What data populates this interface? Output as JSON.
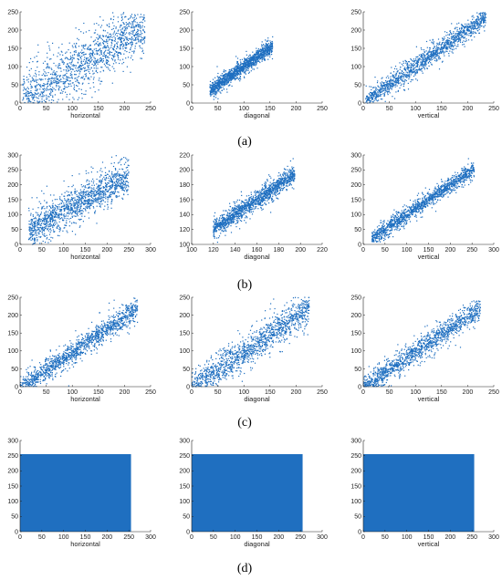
{
  "colors": {
    "marker": "#1f6fc0",
    "fill": "#1f6fc0",
    "axis": "#222222"
  },
  "panels": [
    {
      "label": "(a)"
    },
    {
      "label": "(b)"
    },
    {
      "label": "(c)"
    },
    {
      "label": "(d)"
    }
  ],
  "chart_data": [
    {
      "type": "scatter",
      "panel": "(a)",
      "xlabel": "horizontal",
      "ylabel": "",
      "xlim": [
        0,
        250
      ],
      "ylim": [
        0,
        250
      ],
      "xticks": [
        0,
        50,
        100,
        150,
        200,
        250
      ],
      "yticks": [
        0,
        50,
        100,
        150,
        200,
        250
      ],
      "distribution": {
        "center": [
          110,
          100
        ],
        "trend_slope": 0.85,
        "spread": 38,
        "x_range": [
          5,
          240
        ]
      }
    },
    {
      "type": "scatter",
      "panel": "(a)",
      "xlabel": "diagonal",
      "ylabel": "",
      "xlim": [
        0,
        250
      ],
      "ylim": [
        0,
        250
      ],
      "xticks": [
        0,
        50,
        100,
        150,
        200,
        250
      ],
      "yticks": [
        0,
        50,
        100,
        150,
        200,
        250
      ],
      "distribution": {
        "center": [
          95,
          95
        ],
        "trend_slope": 1.0,
        "spread": 10,
        "x_range": [
          35,
          155
        ]
      }
    },
    {
      "type": "scatter",
      "panel": "(a)",
      "xlabel": "vertical",
      "ylabel": "",
      "xlim": [
        0,
        250
      ],
      "ylim": [
        0,
        250
      ],
      "xticks": [
        0,
        50,
        100,
        150,
        200,
        250
      ],
      "yticks": [
        0,
        50,
        100,
        150,
        200,
        250
      ],
      "distribution": {
        "center": [
          120,
          120
        ],
        "trend_slope": 1.0,
        "spread": 14,
        "x_range": [
          5,
          235
        ]
      }
    },
    {
      "type": "scatter",
      "panel": "(b)",
      "xlabel": "horizontal",
      "ylabel": "",
      "xlim": [
        0,
        300
      ],
      "ylim": [
        0,
        300
      ],
      "xticks": [
        0,
        50,
        100,
        150,
        200,
        250,
        300
      ],
      "yticks": [
        0,
        50,
        100,
        150,
        200,
        250,
        300
      ],
      "distribution": {
        "center": [
          150,
          150
        ],
        "trend_slope": 0.8,
        "spread": 30,
        "x_range": [
          20,
          250
        ]
      }
    },
    {
      "type": "scatter",
      "panel": "(b)",
      "xlabel": "diagonal",
      "ylabel": "",
      "xlim": [
        100,
        220
      ],
      "ylim": [
        100,
        220
      ],
      "xticks": [
        100,
        120,
        140,
        160,
        180,
        200,
        220
      ],
      "yticks": [
        100,
        120,
        140,
        160,
        180,
        200,
        220
      ],
      "distribution": {
        "center": [
          160,
          160
        ],
        "trend_slope": 1.0,
        "spread": 6,
        "x_range": [
          120,
          195
        ]
      }
    },
    {
      "type": "scatter",
      "panel": "(b)",
      "xlabel": "vertical",
      "ylabel": "",
      "xlim": [
        0,
        300
      ],
      "ylim": [
        0,
        300
      ],
      "xticks": [
        0,
        50,
        100,
        150,
        200,
        250,
        300
      ],
      "yticks": [
        0,
        50,
        100,
        150,
        200,
        250,
        300
      ],
      "distribution": {
        "center": [
          140,
          140
        ],
        "trend_slope": 1.0,
        "spread": 13,
        "x_range": [
          20,
          255
        ]
      }
    },
    {
      "type": "scatter",
      "panel": "(c)",
      "xlabel": "horizontal",
      "ylabel": "",
      "xlim": [
        0,
        250
      ],
      "ylim": [
        0,
        250
      ],
      "xticks": [
        0,
        50,
        100,
        150,
        200,
        250
      ],
      "yticks": [
        0,
        50,
        100,
        150,
        200,
        250
      ],
      "distribution": {
        "center": [
          100,
          95
        ],
        "trend_slope": 1.0,
        "spread": 16,
        "x_range": [
          0,
          225
        ]
      }
    },
    {
      "type": "scatter",
      "panel": "(c)",
      "xlabel": "diagonal",
      "ylabel": "",
      "xlim": [
        0,
        250
      ],
      "ylim": [
        0,
        250
      ],
      "xticks": [
        0,
        50,
        100,
        150,
        200,
        250
      ],
      "yticks": [
        0,
        50,
        100,
        150,
        200,
        250
      ],
      "distribution": {
        "center": [
          100,
          95
        ],
        "trend_slope": 1.0,
        "spread": 22,
        "x_range": [
          0,
          225
        ]
      }
    },
    {
      "type": "scatter",
      "panel": "(c)",
      "xlabel": "vertical",
      "ylabel": "",
      "xlim": [
        0,
        250
      ],
      "ylim": [
        0,
        250
      ],
      "xticks": [
        0,
        50,
        100,
        150,
        200,
        250
      ],
      "yticks": [
        0,
        50,
        100,
        150,
        200,
        250
      ],
      "distribution": {
        "center": [
          100,
          95
        ],
        "trend_slope": 1.0,
        "spread": 16,
        "x_range": [
          0,
          225
        ]
      }
    },
    {
      "type": "area",
      "panel": "(d)",
      "xlabel": "horizontal",
      "ylabel": "",
      "xlim": [
        0,
        300
      ],
      "ylim": [
        0,
        300
      ],
      "xticks": [
        0,
        50,
        100,
        150,
        200,
        250,
        300
      ],
      "yticks": [
        0,
        50,
        100,
        150,
        200,
        250,
        300
      ],
      "filled_region": {
        "x": [
          0,
          255
        ],
        "y": [
          0,
          255
        ]
      }
    },
    {
      "type": "area",
      "panel": "(d)",
      "xlabel": "diagonal",
      "ylabel": "",
      "xlim": [
        0,
        300
      ],
      "ylim": [
        0,
        300
      ],
      "xticks": [
        0,
        50,
        100,
        150,
        200,
        250,
        300
      ],
      "yticks": [
        0,
        50,
        100,
        150,
        200,
        250,
        300
      ],
      "filled_region": {
        "x": [
          0,
          255
        ],
        "y": [
          0,
          255
        ]
      }
    },
    {
      "type": "area",
      "panel": "(d)",
      "xlabel": "vertical",
      "ylabel": "",
      "xlim": [
        0,
        300
      ],
      "ylim": [
        0,
        300
      ],
      "xticks": [
        0,
        50,
        100,
        150,
        200,
        250,
        300
      ],
      "yticks": [
        0,
        50,
        100,
        150,
        200,
        250,
        300
      ],
      "filled_region": {
        "x": [
          0,
          255
        ],
        "y": [
          0,
          255
        ]
      }
    }
  ]
}
